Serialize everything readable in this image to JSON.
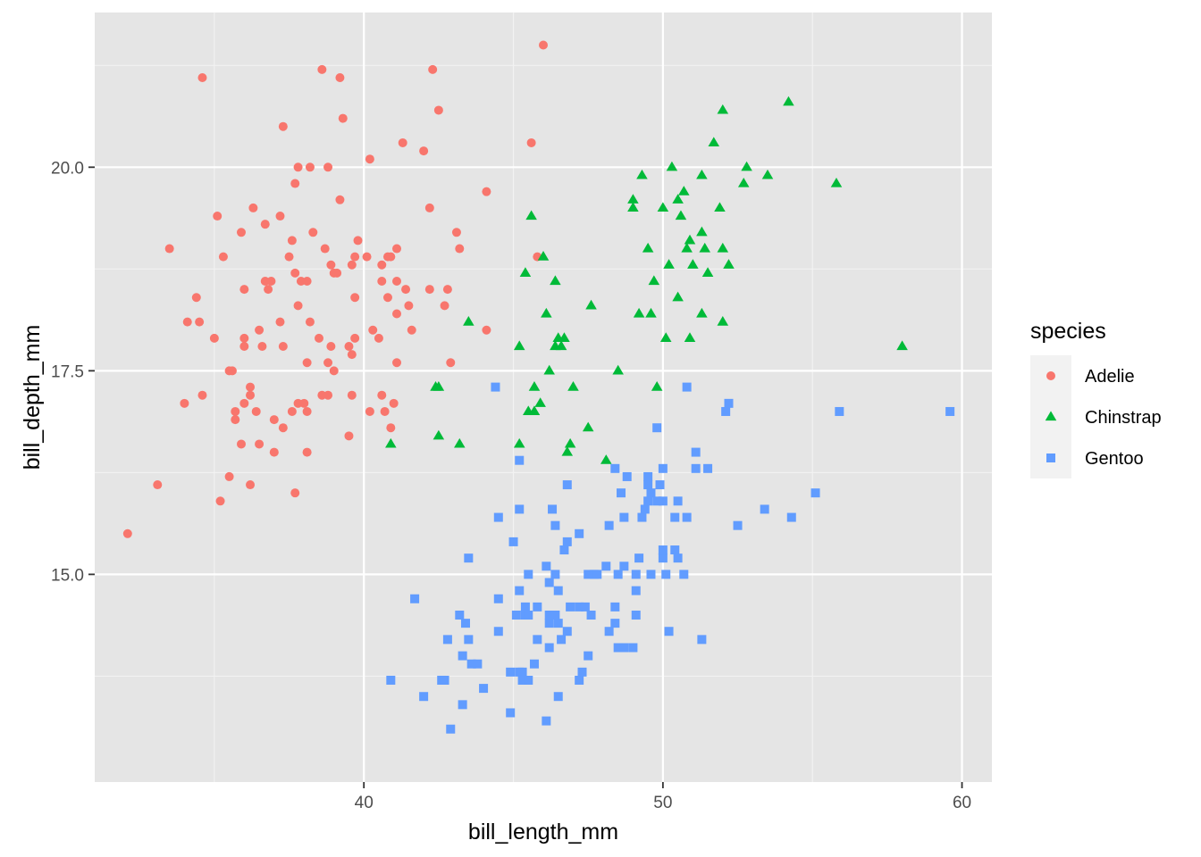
{
  "chart_data": {
    "type": "scatter",
    "xlabel": "bill_length_mm",
    "ylabel": "bill_depth_mm",
    "xlim": [
      31.0,
      61.0
    ],
    "ylim": [
      12.45,
      21.9
    ],
    "x_ticks": [
      40,
      50,
      60
    ],
    "x_tick_labels": [
      "40",
      "50",
      "60"
    ],
    "y_ticks": [
      15.0,
      17.5,
      20.0
    ],
    "y_tick_labels": [
      "15.0",
      "17.5",
      "20.0"
    ],
    "background": "#e5e5e5",
    "grid": true,
    "legend": {
      "title": "species",
      "position": "right"
    },
    "series": [
      {
        "name": "Adelie",
        "color": "#f8766d",
        "shape": "circle",
        "points": [
          [
            32.1,
            15.5
          ],
          [
            33.1,
            16.1
          ],
          [
            33.5,
            19.0
          ],
          [
            34.0,
            17.1
          ],
          [
            34.1,
            18.1
          ],
          [
            34.4,
            18.4
          ],
          [
            34.5,
            18.1
          ],
          [
            34.6,
            21.1
          ],
          [
            34.6,
            17.2
          ],
          [
            35.0,
            17.9
          ],
          [
            35.1,
            19.4
          ],
          [
            35.2,
            15.9
          ],
          [
            35.3,
            18.9
          ],
          [
            35.5,
            16.2
          ],
          [
            35.5,
            17.5
          ],
          [
            35.6,
            17.5
          ],
          [
            35.7,
            16.9
          ],
          [
            35.7,
            17.0
          ],
          [
            35.9,
            19.2
          ],
          [
            35.9,
            16.6
          ],
          [
            36.0,
            18.5
          ],
          [
            36.0,
            17.9
          ],
          [
            36.0,
            17.1
          ],
          [
            36.0,
            17.8
          ],
          [
            36.2,
            16.1
          ],
          [
            36.2,
            17.3
          ],
          [
            36.2,
            17.2
          ],
          [
            36.3,
            19.5
          ],
          [
            36.4,
            17.0
          ],
          [
            36.5,
            18.0
          ],
          [
            36.5,
            16.6
          ],
          [
            36.6,
            17.8
          ],
          [
            36.7,
            18.6
          ],
          [
            36.7,
            19.3
          ],
          [
            36.8,
            18.5
          ],
          [
            36.9,
            18.6
          ],
          [
            37.0,
            16.9
          ],
          [
            37.0,
            16.5
          ],
          [
            37.2,
            18.1
          ],
          [
            37.2,
            19.4
          ],
          [
            37.3,
            20.5
          ],
          [
            37.3,
            17.8
          ],
          [
            37.3,
            16.8
          ],
          [
            37.5,
            18.9
          ],
          [
            37.6,
            19.1
          ],
          [
            37.6,
            17.0
          ],
          [
            37.7,
            18.7
          ],
          [
            37.7,
            16.0
          ],
          [
            37.7,
            19.8
          ],
          [
            37.8,
            17.1
          ],
          [
            37.8,
            18.3
          ],
          [
            37.8,
            20.0
          ],
          [
            37.9,
            18.6
          ],
          [
            38.0,
            17.1
          ],
          [
            38.1,
            18.6
          ],
          [
            38.1,
            17.0
          ],
          [
            38.1,
            16.5
          ],
          [
            38.1,
            17.6
          ],
          [
            38.2,
            18.1
          ],
          [
            38.2,
            20.0
          ],
          [
            38.3,
            19.2
          ],
          [
            38.5,
            17.9
          ],
          [
            38.6,
            21.2
          ],
          [
            38.6,
            17.2
          ],
          [
            38.7,
            19.0
          ],
          [
            38.8,
            17.2
          ],
          [
            38.8,
            20.0
          ],
          [
            38.8,
            17.6
          ],
          [
            38.9,
            18.8
          ],
          [
            38.9,
            17.8
          ],
          [
            39.0,
            17.5
          ],
          [
            39.0,
            18.7
          ],
          [
            39.1,
            18.7
          ],
          [
            39.2,
            19.6
          ],
          [
            39.2,
            21.1
          ],
          [
            39.3,
            20.6
          ],
          [
            39.5,
            16.7
          ],
          [
            39.5,
            17.8
          ],
          [
            39.6,
            17.7
          ],
          [
            39.6,
            18.8
          ],
          [
            39.6,
            17.2
          ],
          [
            39.7,
            18.4
          ],
          [
            39.7,
            17.9
          ],
          [
            39.7,
            18.9
          ],
          [
            39.8,
            19.1
          ],
          [
            40.1,
            18.9
          ],
          [
            40.2,
            17.0
          ],
          [
            40.2,
            20.1
          ],
          [
            40.3,
            18.0
          ],
          [
            40.5,
            17.9
          ],
          [
            40.6,
            18.6
          ],
          [
            40.6,
            17.2
          ],
          [
            40.6,
            18.8
          ],
          [
            40.7,
            17.0
          ],
          [
            40.8,
            18.4
          ],
          [
            40.8,
            18.9
          ],
          [
            40.9,
            16.8
          ],
          [
            40.9,
            18.9
          ],
          [
            41.0,
            17.1
          ],
          [
            41.1,
            18.2
          ],
          [
            41.1,
            17.6
          ],
          [
            41.1,
            19.0
          ],
          [
            41.1,
            18.6
          ],
          [
            41.3,
            20.3
          ],
          [
            41.4,
            18.5
          ],
          [
            41.5,
            18.3
          ],
          [
            41.6,
            18.0
          ],
          [
            42.0,
            20.2
          ],
          [
            42.2,
            18.5
          ],
          [
            42.2,
            19.5
          ],
          [
            42.3,
            21.2
          ],
          [
            42.5,
            20.7
          ],
          [
            42.7,
            18.3
          ],
          [
            42.8,
            18.5
          ],
          [
            42.9,
            17.6
          ],
          [
            43.1,
            19.2
          ],
          [
            43.2,
            19.0
          ],
          [
            44.1,
            19.7
          ],
          [
            44.1,
            18.0
          ],
          [
            45.6,
            20.3
          ],
          [
            45.8,
            18.9
          ],
          [
            46.0,
            21.5
          ]
        ]
      },
      {
        "name": "Chinstrap",
        "color": "#00ba38",
        "shape": "triangle",
        "points": [
          [
            40.9,
            16.6
          ],
          [
            42.4,
            17.3
          ],
          [
            42.5,
            16.7
          ],
          [
            42.5,
            17.3
          ],
          [
            43.2,
            16.6
          ],
          [
            43.5,
            18.1
          ],
          [
            45.2,
            17.8
          ],
          [
            45.2,
            16.6
          ],
          [
            45.4,
            18.7
          ],
          [
            45.5,
            17.0
          ],
          [
            45.6,
            19.4
          ],
          [
            45.7,
            17.3
          ],
          [
            45.7,
            17.0
          ],
          [
            45.9,
            17.1
          ],
          [
            46.0,
            18.9
          ],
          [
            46.1,
            18.2
          ],
          [
            46.2,
            17.5
          ],
          [
            46.4,
            18.6
          ],
          [
            46.4,
            17.8
          ],
          [
            46.5,
            17.9
          ],
          [
            46.6,
            17.8
          ],
          [
            46.7,
            17.9
          ],
          [
            46.8,
            16.5
          ],
          [
            46.9,
            16.6
          ],
          [
            47.0,
            17.3
          ],
          [
            47.5,
            16.8
          ],
          [
            47.6,
            18.3
          ],
          [
            48.1,
            16.4
          ],
          [
            48.5,
            17.5
          ],
          [
            49.0,
            19.5
          ],
          [
            49.0,
            19.6
          ],
          [
            49.2,
            18.2
          ],
          [
            49.3,
            19.9
          ],
          [
            49.5,
            19.0
          ],
          [
            49.6,
            18.2
          ],
          [
            49.7,
            18.6
          ],
          [
            49.8,
            17.3
          ],
          [
            50.0,
            19.5
          ],
          [
            50.1,
            17.9
          ],
          [
            50.2,
            18.8
          ],
          [
            50.3,
            20.0
          ],
          [
            50.5,
            18.4
          ],
          [
            50.5,
            19.6
          ],
          [
            50.6,
            19.4
          ],
          [
            50.7,
            19.7
          ],
          [
            50.8,
            19.0
          ],
          [
            50.9,
            19.1
          ],
          [
            50.9,
            17.9
          ],
          [
            51.0,
            18.8
          ],
          [
            51.3,
            18.2
          ],
          [
            51.3,
            19.2
          ],
          [
            51.3,
            19.9
          ],
          [
            51.4,
            19.0
          ],
          [
            51.5,
            18.7
          ],
          [
            51.7,
            20.3
          ],
          [
            51.9,
            19.5
          ],
          [
            52.0,
            18.1
          ],
          [
            52.0,
            19.0
          ],
          [
            52.0,
            20.7
          ],
          [
            52.2,
            18.8
          ],
          [
            52.7,
            19.8
          ],
          [
            52.8,
            20.0
          ],
          [
            53.5,
            19.9
          ],
          [
            54.2,
            20.8
          ],
          [
            55.8,
            19.8
          ],
          [
            58.0,
            17.8
          ]
        ]
      },
      {
        "name": "Gentoo",
        "color": "#619cff",
        "shape": "square",
        "points": [
          [
            40.9,
            13.7
          ],
          [
            41.7,
            14.7
          ],
          [
            42.0,
            13.5
          ],
          [
            42.6,
            13.7
          ],
          [
            42.7,
            13.7
          ],
          [
            42.8,
            14.2
          ],
          [
            42.9,
            13.1
          ],
          [
            43.2,
            14.5
          ],
          [
            43.3,
            13.4
          ],
          [
            43.3,
            14.0
          ],
          [
            43.4,
            14.4
          ],
          [
            43.5,
            14.2
          ],
          [
            43.5,
            15.2
          ],
          [
            43.6,
            13.9
          ],
          [
            43.8,
            13.9
          ],
          [
            44.0,
            13.6
          ],
          [
            44.4,
            17.3
          ],
          [
            44.5,
            14.3
          ],
          [
            44.5,
            14.7
          ],
          [
            44.5,
            15.7
          ],
          [
            44.9,
            13.8
          ],
          [
            44.9,
            13.3
          ],
          [
            45.0,
            15.4
          ],
          [
            45.1,
            14.5
          ],
          [
            45.2,
            13.8
          ],
          [
            45.2,
            14.8
          ],
          [
            45.2,
            15.8
          ],
          [
            45.2,
            16.4
          ],
          [
            45.3,
            13.8
          ],
          [
            45.3,
            13.7
          ],
          [
            45.4,
            14.6
          ],
          [
            45.4,
            14.5
          ],
          [
            45.5,
            13.7
          ],
          [
            45.5,
            14.5
          ],
          [
            45.5,
            15.0
          ],
          [
            45.7,
            13.9
          ],
          [
            45.8,
            14.2
          ],
          [
            45.8,
            14.6
          ],
          [
            46.1,
            13.2
          ],
          [
            46.1,
            15.1
          ],
          [
            46.2,
            14.1
          ],
          [
            46.2,
            14.5
          ],
          [
            46.2,
            14.4
          ],
          [
            46.2,
            14.9
          ],
          [
            46.3,
            15.8
          ],
          [
            46.4,
            14.5
          ],
          [
            46.4,
            15.0
          ],
          [
            46.4,
            15.6
          ],
          [
            46.5,
            13.5
          ],
          [
            46.5,
            14.4
          ],
          [
            46.5,
            14.8
          ],
          [
            46.6,
            14.2
          ],
          [
            46.7,
            15.3
          ],
          [
            46.8,
            14.3
          ],
          [
            46.8,
            15.4
          ],
          [
            46.8,
            16.1
          ],
          [
            46.9,
            14.6
          ],
          [
            47.2,
            13.7
          ],
          [
            47.2,
            14.6
          ],
          [
            47.2,
            15.5
          ],
          [
            47.3,
            13.8
          ],
          [
            47.4,
            14.6
          ],
          [
            47.5,
            14.0
          ],
          [
            47.5,
            15.0
          ],
          [
            47.6,
            14.5
          ],
          [
            47.7,
            15.0
          ],
          [
            47.8,
            15.0
          ],
          [
            48.1,
            15.1
          ],
          [
            48.2,
            14.3
          ],
          [
            48.2,
            15.6
          ],
          [
            48.4,
            14.4
          ],
          [
            48.4,
            14.6
          ],
          [
            48.4,
            16.3
          ],
          [
            48.5,
            14.1
          ],
          [
            48.5,
            15.0
          ],
          [
            48.6,
            16.0
          ],
          [
            48.7,
            14.1
          ],
          [
            48.7,
            15.1
          ],
          [
            48.7,
            15.7
          ],
          [
            48.8,
            16.2
          ],
          [
            49.0,
            14.1
          ],
          [
            49.1,
            14.5
          ],
          [
            49.1,
            14.8
          ],
          [
            49.1,
            15.0
          ],
          [
            49.2,
            15.2
          ],
          [
            49.3,
            15.7
          ],
          [
            49.4,
            15.8
          ],
          [
            49.5,
            15.9
          ],
          [
            49.5,
            16.1
          ],
          [
            49.5,
            16.2
          ],
          [
            49.6,
            15.0
          ],
          [
            49.6,
            16.0
          ],
          [
            49.8,
            15.9
          ],
          [
            49.8,
            16.8
          ],
          [
            49.9,
            16.1
          ],
          [
            50.0,
            15.2
          ],
          [
            50.0,
            15.3
          ],
          [
            50.0,
            15.9
          ],
          [
            50.0,
            16.3
          ],
          [
            50.1,
            15.0
          ],
          [
            50.2,
            14.3
          ],
          [
            50.4,
            15.3
          ],
          [
            50.4,
            15.7
          ],
          [
            50.5,
            15.2
          ],
          [
            50.5,
            15.9
          ],
          [
            50.7,
            15.0
          ],
          [
            50.8,
            15.7
          ],
          [
            50.8,
            17.3
          ],
          [
            51.1,
            16.3
          ],
          [
            51.1,
            16.5
          ],
          [
            51.3,
            14.2
          ],
          [
            51.5,
            16.3
          ],
          [
            52.1,
            17.0
          ],
          [
            52.2,
            17.1
          ],
          [
            52.5,
            15.6
          ],
          [
            53.4,
            15.8
          ],
          [
            54.3,
            15.7
          ],
          [
            55.1,
            16.0
          ],
          [
            55.9,
            17.0
          ],
          [
            59.6,
            17.0
          ]
        ]
      }
    ]
  }
}
